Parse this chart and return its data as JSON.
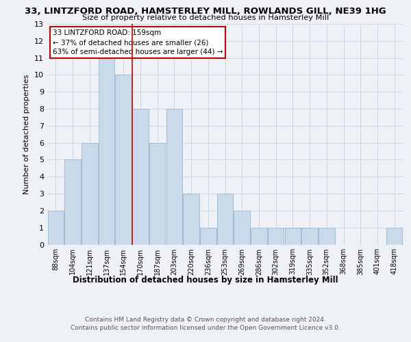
{
  "title": "33, LINTZFORD ROAD, HAMSTERLEY MILL, ROWLANDS GILL, NE39 1HG",
  "subtitle": "Size of property relative to detached houses in Hamsterley Mill",
  "xlabel": "Distribution of detached houses by size in Hamsterley Mill",
  "ylabel": "Number of detached properties",
  "bar_labels": [
    "88sqm",
    "104sqm",
    "121sqm",
    "137sqm",
    "154sqm",
    "170sqm",
    "187sqm",
    "203sqm",
    "220sqm",
    "236sqm",
    "253sqm",
    "269sqm",
    "286sqm",
    "302sqm",
    "319sqm",
    "335sqm",
    "352sqm",
    "368sqm",
    "385sqm",
    "401sqm",
    "418sqm"
  ],
  "bar_values": [
    2,
    5,
    6,
    11,
    10,
    8,
    6,
    8,
    3,
    1,
    3,
    2,
    1,
    1,
    1,
    1,
    1,
    0,
    0,
    0,
    1
  ],
  "bar_color": "#c9daea",
  "bar_edge_color": "#a0bcd4",
  "grid_color": "#c8d4e0",
  "background_color": "#eef2f7",
  "vline_x": 4.5,
  "vline_color": "#cc0000",
  "annotation_title": "33 LINTZFORD ROAD: 159sqm",
  "annotation_line1": "← 37% of detached houses are smaller (26)",
  "annotation_line2": "63% of semi-detached houses are larger (44) →",
  "annotation_box_color": "#ffffff",
  "annotation_border_color": "#cc0000",
  "ylim": [
    0,
    13
  ],
  "yticks": [
    0,
    1,
    2,
    3,
    4,
    5,
    6,
    7,
    8,
    9,
    10,
    11,
    12,
    13
  ],
  "footer1": "Contains HM Land Registry data © Crown copyright and database right 2024.",
  "footer2": "Contains public sector information licensed under the Open Government Licence v3.0."
}
